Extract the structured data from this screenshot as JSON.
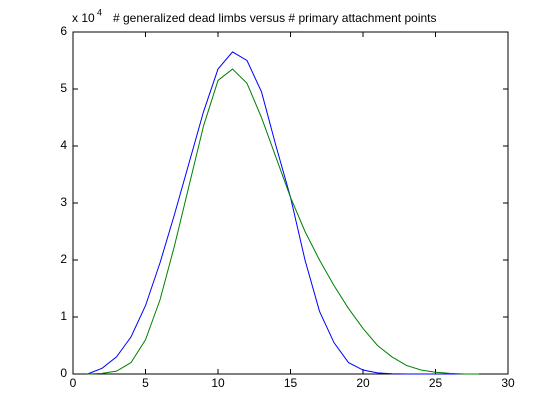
{
  "chart_data": {
    "type": "line",
    "title": "# generalized dead limbs versus # primary attachment points",
    "y_multiplier": {
      "base": "x 10",
      "exponent": "4"
    },
    "x": [
      1,
      2,
      3,
      4,
      5,
      6,
      7,
      8,
      9,
      10,
      11,
      12,
      13,
      14,
      15,
      16,
      17,
      18,
      19,
      20,
      21,
      22,
      23,
      24,
      25,
      26,
      27,
      28
    ],
    "series": [
      {
        "color": "#0000ff",
        "values": [
          0,
          0.1,
          0.3,
          0.65,
          1.2,
          1.95,
          2.8,
          3.7,
          4.6,
          5.35,
          5.65,
          5.5,
          4.95,
          4.0,
          3.1,
          2.0,
          1.1,
          0.55,
          0.2,
          0.07,
          0.02,
          0.005,
          0,
          0,
          0,
          0,
          0,
          0
        ]
      },
      {
        "color": "#008000",
        "values": [
          0,
          0.01,
          0.05,
          0.2,
          0.6,
          1.3,
          2.25,
          3.3,
          4.35,
          5.15,
          5.35,
          5.1,
          4.5,
          3.8,
          3.1,
          2.5,
          2.0,
          1.55,
          1.15,
          0.8,
          0.5,
          0.3,
          0.15,
          0.07,
          0.03,
          0.01,
          0,
          0
        ]
      }
    ],
    "xlim": [
      0,
      30
    ],
    "xticks": [
      0,
      5,
      10,
      15,
      20,
      25,
      30
    ],
    "ylim": [
      0,
      6
    ],
    "yticks": [
      0,
      1,
      2,
      3,
      4,
      5,
      6
    ]
  }
}
